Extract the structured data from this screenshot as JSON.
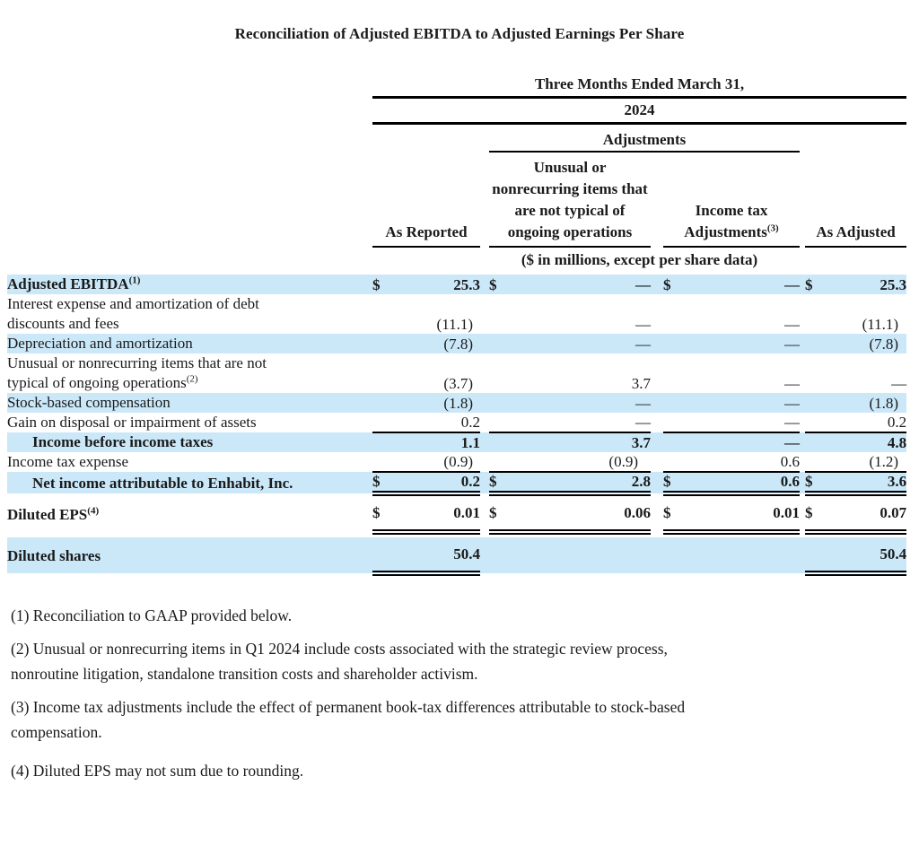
{
  "title": "Reconciliation of Adjusted EBITDA to Adjusted Earnings Per Share",
  "colors": {
    "row_highlight": "#cbe8f9",
    "text": "#1a1a1a",
    "rule": "#000000"
  },
  "table": {
    "period_header": "Three Months Ended March 31,",
    "year": "2024",
    "adjustments_header": "Adjustments",
    "units_note": "($ in millions, except per share data)",
    "columns": [
      {
        "label": "As Reported",
        "sup": ""
      },
      {
        "label": "Unusual or nonrecurring items that are not typical of ongoing operations",
        "sup": ""
      },
      {
        "label": "Income tax Adjustments",
        "sup": "(3)"
      },
      {
        "label": "As Adjusted",
        "sup": ""
      }
    ],
    "rows": [
      {
        "label": "Adjusted EBITDA",
        "sup": "(1)",
        "bold": true,
        "indent": false,
        "shaded": true,
        "tall": false,
        "cells": [
          {
            "d": "$",
            "v": "25.3"
          },
          {
            "d": "$",
            "v": "—"
          },
          {
            "d": "$",
            "v": "—"
          },
          {
            "d": "$",
            "v": "25.3"
          }
        ],
        "borders": [
          "none",
          "none",
          "none",
          "none"
        ]
      },
      {
        "label": [
          "Interest expense and amortization of debt",
          "discounts and fees"
        ],
        "sup": "",
        "bold": false,
        "indent": false,
        "shaded": false,
        "tall": false,
        "cells": [
          {
            "d": "",
            "v": "(11.1)"
          },
          {
            "d": "",
            "v": "—"
          },
          {
            "d": "",
            "v": "—"
          },
          {
            "d": "",
            "v": "(11.1)"
          }
        ],
        "borders": [
          "none",
          "none",
          "none",
          "none"
        ]
      },
      {
        "label": "Depreciation and amortization",
        "sup": "",
        "bold": false,
        "indent": false,
        "shaded": true,
        "tall": false,
        "cells": [
          {
            "d": "",
            "v": "(7.8)"
          },
          {
            "d": "",
            "v": "—"
          },
          {
            "d": "",
            "v": "—"
          },
          {
            "d": "",
            "v": "(7.8)"
          }
        ],
        "borders": [
          "none",
          "none",
          "none",
          "none"
        ]
      },
      {
        "label": [
          "Unusual or nonrecurring items that are not",
          "typical of ongoing operations"
        ],
        "sup": "(2)",
        "bold": false,
        "indent": false,
        "shaded": false,
        "tall": false,
        "cells": [
          {
            "d": "",
            "v": "(3.7)"
          },
          {
            "d": "",
            "v": "3.7"
          },
          {
            "d": "",
            "v": "—"
          },
          {
            "d": "",
            "v": "—"
          }
        ],
        "borders": [
          "none",
          "none",
          "none",
          "none"
        ]
      },
      {
        "label": "Stock-based compensation",
        "sup": "",
        "bold": false,
        "indent": false,
        "shaded": true,
        "tall": false,
        "cells": [
          {
            "d": "",
            "v": "(1.8)"
          },
          {
            "d": "",
            "v": "—"
          },
          {
            "d": "",
            "v": "—"
          },
          {
            "d": "",
            "v": "(1.8)"
          }
        ],
        "borders": [
          "none",
          "none",
          "none",
          "none"
        ]
      },
      {
        "label": "Gain on disposal or impairment of assets",
        "sup": "",
        "bold": false,
        "indent": false,
        "shaded": false,
        "tall": false,
        "cells": [
          {
            "d": "",
            "v": "0.2"
          },
          {
            "d": "",
            "v": "—"
          },
          {
            "d": "",
            "v": "—"
          },
          {
            "d": "",
            "v": "0.2"
          }
        ],
        "borders": [
          "single",
          "single",
          "single",
          "single"
        ]
      },
      {
        "label": "Income before income taxes",
        "sup": "",
        "bold": true,
        "indent": true,
        "shaded": true,
        "tall": false,
        "cells": [
          {
            "d": "",
            "v": "1.1"
          },
          {
            "d": "",
            "v": "3.7"
          },
          {
            "d": "",
            "v": "—"
          },
          {
            "d": "",
            "v": "4.8"
          }
        ],
        "borders": [
          "none",
          "none",
          "none",
          "none"
        ]
      },
      {
        "label": "Income tax expense",
        "sup": "",
        "bold": false,
        "indent": false,
        "shaded": false,
        "tall": false,
        "cells": [
          {
            "d": "",
            "v": "(0.9)"
          },
          {
            "d": "",
            "v": "(0.9)"
          },
          {
            "d": "",
            "v": "0.6"
          },
          {
            "d": "",
            "v": "(1.2)"
          }
        ],
        "borders": [
          "single",
          "single",
          "single",
          "single"
        ]
      },
      {
        "label": "Net income attributable to Enhabit, Inc.",
        "sup": "",
        "bold": true,
        "indent": true,
        "shaded": true,
        "tall": false,
        "cells": [
          {
            "d": "$",
            "v": "0.2"
          },
          {
            "d": "$",
            "v": "2.8"
          },
          {
            "d": "$",
            "v": "0.6"
          },
          {
            "d": "$",
            "v": "3.6"
          }
        ],
        "borders": [
          "double",
          "double",
          "double",
          "double"
        ]
      },
      {
        "label": "Diluted EPS",
        "sup": "(4)",
        "bold": true,
        "indent": false,
        "shaded": false,
        "tall": true,
        "cells": [
          {
            "d": "$",
            "v": "0.01"
          },
          {
            "d": "$",
            "v": "0.06"
          },
          {
            "d": "$",
            "v": "0.01"
          },
          {
            "d": "$",
            "v": "0.07"
          }
        ],
        "borders": [
          "double",
          "double",
          "double",
          "double"
        ]
      },
      {
        "gap": true
      },
      {
        "label": "Diluted shares",
        "sup": "",
        "bold": true,
        "indent": false,
        "shaded": true,
        "tall": true,
        "cells": [
          {
            "d": "",
            "v": "50.4"
          },
          {
            "d": "",
            "v": ""
          },
          {
            "d": "",
            "v": ""
          },
          {
            "d": "",
            "v": "50.4"
          }
        ],
        "borders": [
          "double",
          "none",
          "none",
          "double"
        ]
      }
    ]
  },
  "footnotes": [
    [
      "(1) Reconciliation to GAAP provided below."
    ],
    [
      "(2) Unusual or nonrecurring items in Q1 2024 include costs associated with the strategic review process,",
      "nonroutine litigation, standalone transition costs and shareholder activism."
    ],
    [
      "(3) Income tax adjustments include the effect of permanent book-tax differences attributable to stock-based",
      "compensation."
    ],
    [
      "(4) Diluted EPS may not sum due to rounding."
    ]
  ]
}
